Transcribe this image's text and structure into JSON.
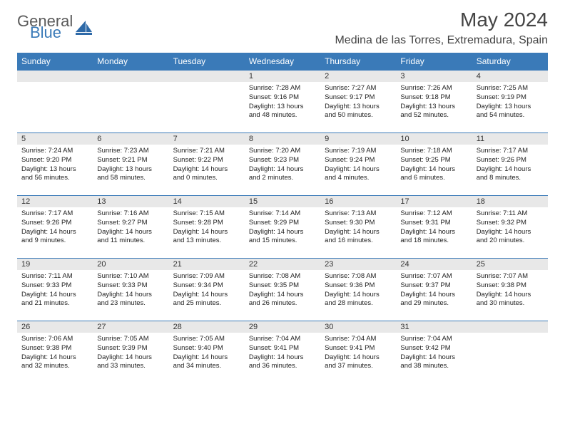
{
  "logo": {
    "word1": "General",
    "word2": "Blue"
  },
  "title": "May 2024",
  "location": "Medina de las Torres, Extremadura, Spain",
  "colors": {
    "header_bg": "#3a7ab8",
    "daynum_bg": "#e8e8e8",
    "border": "#3a7ab8"
  },
  "weekdays": [
    "Sunday",
    "Monday",
    "Tuesday",
    "Wednesday",
    "Thursday",
    "Friday",
    "Saturday"
  ],
  "weeks": [
    [
      null,
      null,
      null,
      {
        "n": "1",
        "sr": "7:28 AM",
        "ss": "9:16 PM",
        "dl": "13 hours and 48 minutes."
      },
      {
        "n": "2",
        "sr": "7:27 AM",
        "ss": "9:17 PM",
        "dl": "13 hours and 50 minutes."
      },
      {
        "n": "3",
        "sr": "7:26 AM",
        "ss": "9:18 PM",
        "dl": "13 hours and 52 minutes."
      },
      {
        "n": "4",
        "sr": "7:25 AM",
        "ss": "9:19 PM",
        "dl": "13 hours and 54 minutes."
      }
    ],
    [
      {
        "n": "5",
        "sr": "7:24 AM",
        "ss": "9:20 PM",
        "dl": "13 hours and 56 minutes."
      },
      {
        "n": "6",
        "sr": "7:23 AM",
        "ss": "9:21 PM",
        "dl": "13 hours and 58 minutes."
      },
      {
        "n": "7",
        "sr": "7:21 AM",
        "ss": "9:22 PM",
        "dl": "14 hours and 0 minutes."
      },
      {
        "n": "8",
        "sr": "7:20 AM",
        "ss": "9:23 PM",
        "dl": "14 hours and 2 minutes."
      },
      {
        "n": "9",
        "sr": "7:19 AM",
        "ss": "9:24 PM",
        "dl": "14 hours and 4 minutes."
      },
      {
        "n": "10",
        "sr": "7:18 AM",
        "ss": "9:25 PM",
        "dl": "14 hours and 6 minutes."
      },
      {
        "n": "11",
        "sr": "7:17 AM",
        "ss": "9:26 PM",
        "dl": "14 hours and 8 minutes."
      }
    ],
    [
      {
        "n": "12",
        "sr": "7:17 AM",
        "ss": "9:26 PM",
        "dl": "14 hours and 9 minutes."
      },
      {
        "n": "13",
        "sr": "7:16 AM",
        "ss": "9:27 PM",
        "dl": "14 hours and 11 minutes."
      },
      {
        "n": "14",
        "sr": "7:15 AM",
        "ss": "9:28 PM",
        "dl": "14 hours and 13 minutes."
      },
      {
        "n": "15",
        "sr": "7:14 AM",
        "ss": "9:29 PM",
        "dl": "14 hours and 15 minutes."
      },
      {
        "n": "16",
        "sr": "7:13 AM",
        "ss": "9:30 PM",
        "dl": "14 hours and 16 minutes."
      },
      {
        "n": "17",
        "sr": "7:12 AM",
        "ss": "9:31 PM",
        "dl": "14 hours and 18 minutes."
      },
      {
        "n": "18",
        "sr": "7:11 AM",
        "ss": "9:32 PM",
        "dl": "14 hours and 20 minutes."
      }
    ],
    [
      {
        "n": "19",
        "sr": "7:11 AM",
        "ss": "9:33 PM",
        "dl": "14 hours and 21 minutes."
      },
      {
        "n": "20",
        "sr": "7:10 AM",
        "ss": "9:33 PM",
        "dl": "14 hours and 23 minutes."
      },
      {
        "n": "21",
        "sr": "7:09 AM",
        "ss": "9:34 PM",
        "dl": "14 hours and 25 minutes."
      },
      {
        "n": "22",
        "sr": "7:08 AM",
        "ss": "9:35 PM",
        "dl": "14 hours and 26 minutes."
      },
      {
        "n": "23",
        "sr": "7:08 AM",
        "ss": "9:36 PM",
        "dl": "14 hours and 28 minutes."
      },
      {
        "n": "24",
        "sr": "7:07 AM",
        "ss": "9:37 PM",
        "dl": "14 hours and 29 minutes."
      },
      {
        "n": "25",
        "sr": "7:07 AM",
        "ss": "9:38 PM",
        "dl": "14 hours and 30 minutes."
      }
    ],
    [
      {
        "n": "26",
        "sr": "7:06 AM",
        "ss": "9:38 PM",
        "dl": "14 hours and 32 minutes."
      },
      {
        "n": "27",
        "sr": "7:05 AM",
        "ss": "9:39 PM",
        "dl": "14 hours and 33 minutes."
      },
      {
        "n": "28",
        "sr": "7:05 AM",
        "ss": "9:40 PM",
        "dl": "14 hours and 34 minutes."
      },
      {
        "n": "29",
        "sr": "7:04 AM",
        "ss": "9:41 PM",
        "dl": "14 hours and 36 minutes."
      },
      {
        "n": "30",
        "sr": "7:04 AM",
        "ss": "9:41 PM",
        "dl": "14 hours and 37 minutes."
      },
      {
        "n": "31",
        "sr": "7:04 AM",
        "ss": "9:42 PM",
        "dl": "14 hours and 38 minutes."
      },
      null
    ]
  ]
}
